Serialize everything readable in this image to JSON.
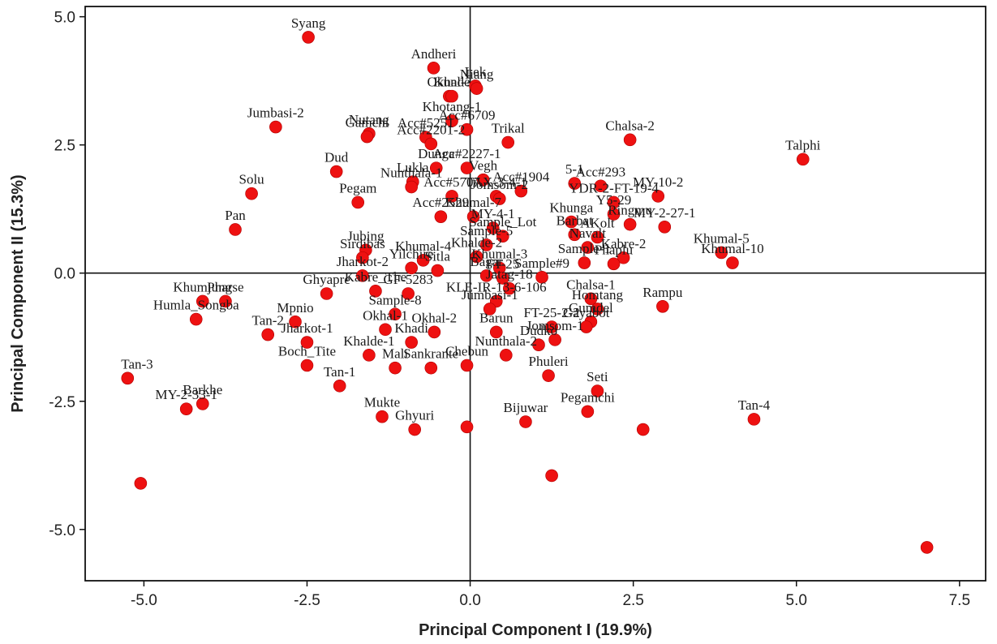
{
  "chart_data": {
    "type": "scatter",
    "xlabel": "Principal Component I (19.9%)",
    "ylabel": "Principal Component II (15.3%)",
    "xlim": [
      -5.9,
      7.9
    ],
    "ylim": [
      -6.0,
      5.2
    ],
    "xticks": [
      -5.0,
      -2.5,
      0.0,
      2.5,
      5.0,
      7.5
    ],
    "xtick_labels": [
      "-5.0",
      "-2.5",
      "0.0",
      "2.5",
      "5.0",
      "7.5"
    ],
    "yticks": [
      -5.0,
      -2.5,
      0.0,
      2.5,
      5.0
    ],
    "ytick_labels": [
      "-5.0",
      "-2.5",
      "0.0",
      "2.5",
      "5.0"
    ],
    "reference_lines": {
      "x": 0.0,
      "y": 0.0
    },
    "grid": false,
    "marker_color": "#ee1111",
    "points": [
      {
        "label": "Syang",
        "x": -2.48,
        "y": 4.6
      },
      {
        "label": "Andheri",
        "x": -0.56,
        "y": 4.0
      },
      {
        "label": "Lek",
        "x": 0.08,
        "y": 3.65
      },
      {
        "label": "Okhal-?",
        "x": -0.32,
        "y": 3.45
      },
      {
        "label": "Kunde",
        "x": -0.28,
        "y": 3.45
      },
      {
        "label": "Niang",
        "x": 0.1,
        "y": 3.6
      },
      {
        "label": "Jumbasi-2",
        "x": -2.98,
        "y": 2.85
      },
      {
        "label": "Nutang",
        "x": -1.55,
        "y": 2.72
      },
      {
        "label": "Gamchi",
        "x": -1.58,
        "y": 2.66
      },
      {
        "label": "Khotang-1",
        "x": -0.28,
        "y": 2.97
      },
      {
        "label": "Acc#5251",
        "x": -0.68,
        "y": 2.65
      },
      {
        "label": "Acc#6709",
        "x": -0.05,
        "y": 2.8
      },
      {
        "label": "Trikal",
        "x": 0.58,
        "y": 2.55
      },
      {
        "label": "Acc#2201-2",
        "x": -0.6,
        "y": 2.52
      },
      {
        "label": "Chalsa-2",
        "x": 2.45,
        "y": 2.6
      },
      {
        "label": "Talphi",
        "x": 5.1,
        "y": 2.22
      },
      {
        "label": "Dud",
        "x": -2.05,
        "y": 1.98
      },
      {
        "label": "Dunga",
        "x": -0.52,
        "y": 2.05
      },
      {
        "label": "Acc#2227-1",
        "x": -0.05,
        "y": 2.05
      },
      {
        "label": "Lukla",
        "x": -0.88,
        "y": 1.78
      },
      {
        "label": "Nunthala-1",
        "x": -0.9,
        "y": 1.68
      },
      {
        "label": "Vegh",
        "x": 0.2,
        "y": 1.82
      },
      {
        "label": "Acc#1904",
        "x": 0.78,
        "y": 1.6
      },
      {
        "label": "5-1",
        "x": 1.6,
        "y": 1.75
      },
      {
        "label": "MY-10-2",
        "x": 2.88,
        "y": 1.5
      },
      {
        "label": "TAX-3-4-1",
        "x": 0.4,
        "y": 1.5
      },
      {
        "label": "Acc#293",
        "x": 2.0,
        "y": 1.7
      },
      {
        "label": "Solu",
        "x": -3.35,
        "y": 1.55
      },
      {
        "label": "Pegam",
        "x": -1.72,
        "y": 1.38
      },
      {
        "label": "Acc#5707",
        "x": -0.28,
        "y": 1.5
      },
      {
        "label": "Jomsom-2",
        "x": 0.45,
        "y": 1.45
      },
      {
        "label": "YDR-2-FT-19-4",
        "x": 2.2,
        "y": 1.38
      },
      {
        "label": "Y5-29",
        "x": 2.2,
        "y": 1.15
      },
      {
        "label": "Acc#2529",
        "x": -0.45,
        "y": 1.1
      },
      {
        "label": "Khumal-7",
        "x": 0.05,
        "y": 1.1
      },
      {
        "label": "Khunga",
        "x": 1.55,
        "y": 1.0
      },
      {
        "label": "Ringmu",
        "x": 2.45,
        "y": 0.95
      },
      {
        "label": "MY-2-27-1",
        "x": 2.98,
        "y": 0.9
      },
      {
        "label": "MY-4-1",
        "x": 0.35,
        "y": 0.88
      },
      {
        "label": "Barbat",
        "x": 1.6,
        "y": 0.75
      },
      {
        "label": "Pan",
        "x": -3.6,
        "y": 0.85
      },
      {
        "label": "Sample_Lot",
        "x": 0.5,
        "y": 0.72
      },
      {
        "label": "AKolt",
        "x": 1.95,
        "y": 0.7
      },
      {
        "label": "Khumal-5",
        "x": 3.85,
        "y": 0.4
      },
      {
        "label": "Jubing",
        "x": -1.6,
        "y": 0.45
      },
      {
        "label": "Sample-5",
        "x": 0.25,
        "y": 0.55
      },
      {
        "label": "Navalt",
        "x": 1.8,
        "y": 0.5
      },
      {
        "label": "Kabre-2",
        "x": 2.35,
        "y": 0.3
      },
      {
        "label": "Sirdibas",
        "x": -1.65,
        "y": 0.3
      },
      {
        "label": "Khumal-4",
        "x": -0.72,
        "y": 0.25
      },
      {
        "label": "Khalde-2",
        "x": 0.1,
        "y": 0.32
      },
      {
        "label": "Sample-1",
        "x": 1.75,
        "y": 0.2
      },
      {
        "label": "Khumal-10",
        "x": 4.02,
        "y": 0.2
      },
      {
        "label": "Yilchire",
        "x": -0.9,
        "y": 0.1
      },
      {
        "label": "Sitla",
        "x": -0.5,
        "y": 0.05
      },
      {
        "label": "Khumal-3",
        "x": 0.45,
        "y": 0.1
      },
      {
        "label": "Phaplu",
        "x": 2.2,
        "y": 0.18
      },
      {
        "label": "Jharkot-2",
        "x": -1.65,
        "y": -0.05
      },
      {
        "label": "Sample#9",
        "x": 1.1,
        "y": -0.08
      },
      {
        "label": "Bagar",
        "x": 0.25,
        "y": -0.05
      },
      {
        "label": "FT-25",
        "x": 0.5,
        "y": -0.1
      },
      {
        "label": "Ghyapre",
        "x": -2.2,
        "y": -0.4
      },
      {
        "label": "Kabre_The",
        "x": -1.45,
        "y": -0.35
      },
      {
        "label": "GF-5283",
        "x": -0.95,
        "y": -0.4
      },
      {
        "label": "Jatag-18",
        "x": 0.6,
        "y": -0.3
      },
      {
        "label": "Chalsa-1",
        "x": 1.85,
        "y": -0.5
      },
      {
        "label": "Khumjung",
        "x": -4.1,
        "y": -0.55
      },
      {
        "label": "Pharse",
        "x": -3.75,
        "y": -0.55
      },
      {
        "label": "KLE-IR-13-6-106",
        "x": 0.4,
        "y": -0.55
      },
      {
        "label": "Rampu",
        "x": 2.95,
        "y": -0.65
      },
      {
        "label": "Mpnio",
        "x": -2.68,
        "y": -0.95
      },
      {
        "label": "Sample-8",
        "x": -1.15,
        "y": -0.8
      },
      {
        "label": "Jumbasi-1",
        "x": 0.3,
        "y": -0.7
      },
      {
        "label": "Homtang",
        "x": 1.95,
        "y": -0.7
      },
      {
        "label": "Humla_Songba",
        "x": -4.2,
        "y": -0.9
      },
      {
        "label": "FT-25-2-2",
        "x": 1.25,
        "y": -1.05
      },
      {
        "label": "Gumdel",
        "x": 1.85,
        "y": -0.95
      },
      {
        "label": "Gayabot",
        "x": 1.78,
        "y": -1.05
      },
      {
        "label": "Tan-2",
        "x": -3.1,
        "y": -1.2
      },
      {
        "label": "Okhal-2",
        "x": -0.55,
        "y": -1.15
      },
      {
        "label": "Barun",
        "x": 0.4,
        "y": -1.15
      },
      {
        "label": "Jomsom-1",
        "x": 1.3,
        "y": -1.3
      },
      {
        "label": "Okhal-1",
        "x": -1.3,
        "y": -1.1
      },
      {
        "label": "Dudko",
        "x": 1.05,
        "y": -1.4
      },
      {
        "label": "Jharkot-1",
        "x": -2.5,
        "y": -1.35
      },
      {
        "label": "Khalde-1",
        "x": -1.55,
        "y": -1.6
      },
      {
        "label": "Khadi",
        "x": -0.9,
        "y": -1.35
      },
      {
        "label": "Nunthala-2",
        "x": 0.55,
        "y": -1.6
      },
      {
        "label": "Tan-3",
        "x": -5.25,
        "y": -2.05
      },
      {
        "label": "Boch_Tite",
        "x": -2.5,
        "y": -1.8
      },
      {
        "label": "Mali",
        "x": -1.15,
        "y": -1.85
      },
      {
        "label": "Sankrante",
        "x": -0.6,
        "y": -1.85
      },
      {
        "label": "Chebun",
        "x": -0.05,
        "y": -1.8
      },
      {
        "label": "Phuleri",
        "x": 1.2,
        "y": -2.0
      },
      {
        "label": "Tan-1",
        "x": -2.0,
        "y": -2.2
      },
      {
        "label": "Seti",
        "x": 1.95,
        "y": -2.3
      },
      {
        "label": "Barkhe",
        "x": -4.1,
        "y": -2.55
      },
      {
        "label": "MY-2-33-1",
        "x": -4.35,
        "y": -2.65
      },
      {
        "label": "Pegamchi",
        "x": 1.8,
        "y": -2.7
      },
      {
        "label": "Mukte",
        "x": -1.35,
        "y": -2.8
      },
      {
        "label": "Bijuwar",
        "x": 0.85,
        "y": -2.9
      },
      {
        "label": "Tan-4",
        "x": 4.35,
        "y": -2.85
      },
      {
        "label": "Ghyuri",
        "x": -0.85,
        "y": -3.05
      },
      {
        "label": "",
        "x": -0.05,
        "y": -3.0
      },
      {
        "label": "",
        "x": 2.65,
        "y": -3.05
      },
      {
        "label": "",
        "x": 1.25,
        "y": -3.95
      },
      {
        "label": "",
        "x": -5.05,
        "y": -4.1
      },
      {
        "label": "",
        "x": 7.0,
        "y": -5.35
      }
    ]
  }
}
